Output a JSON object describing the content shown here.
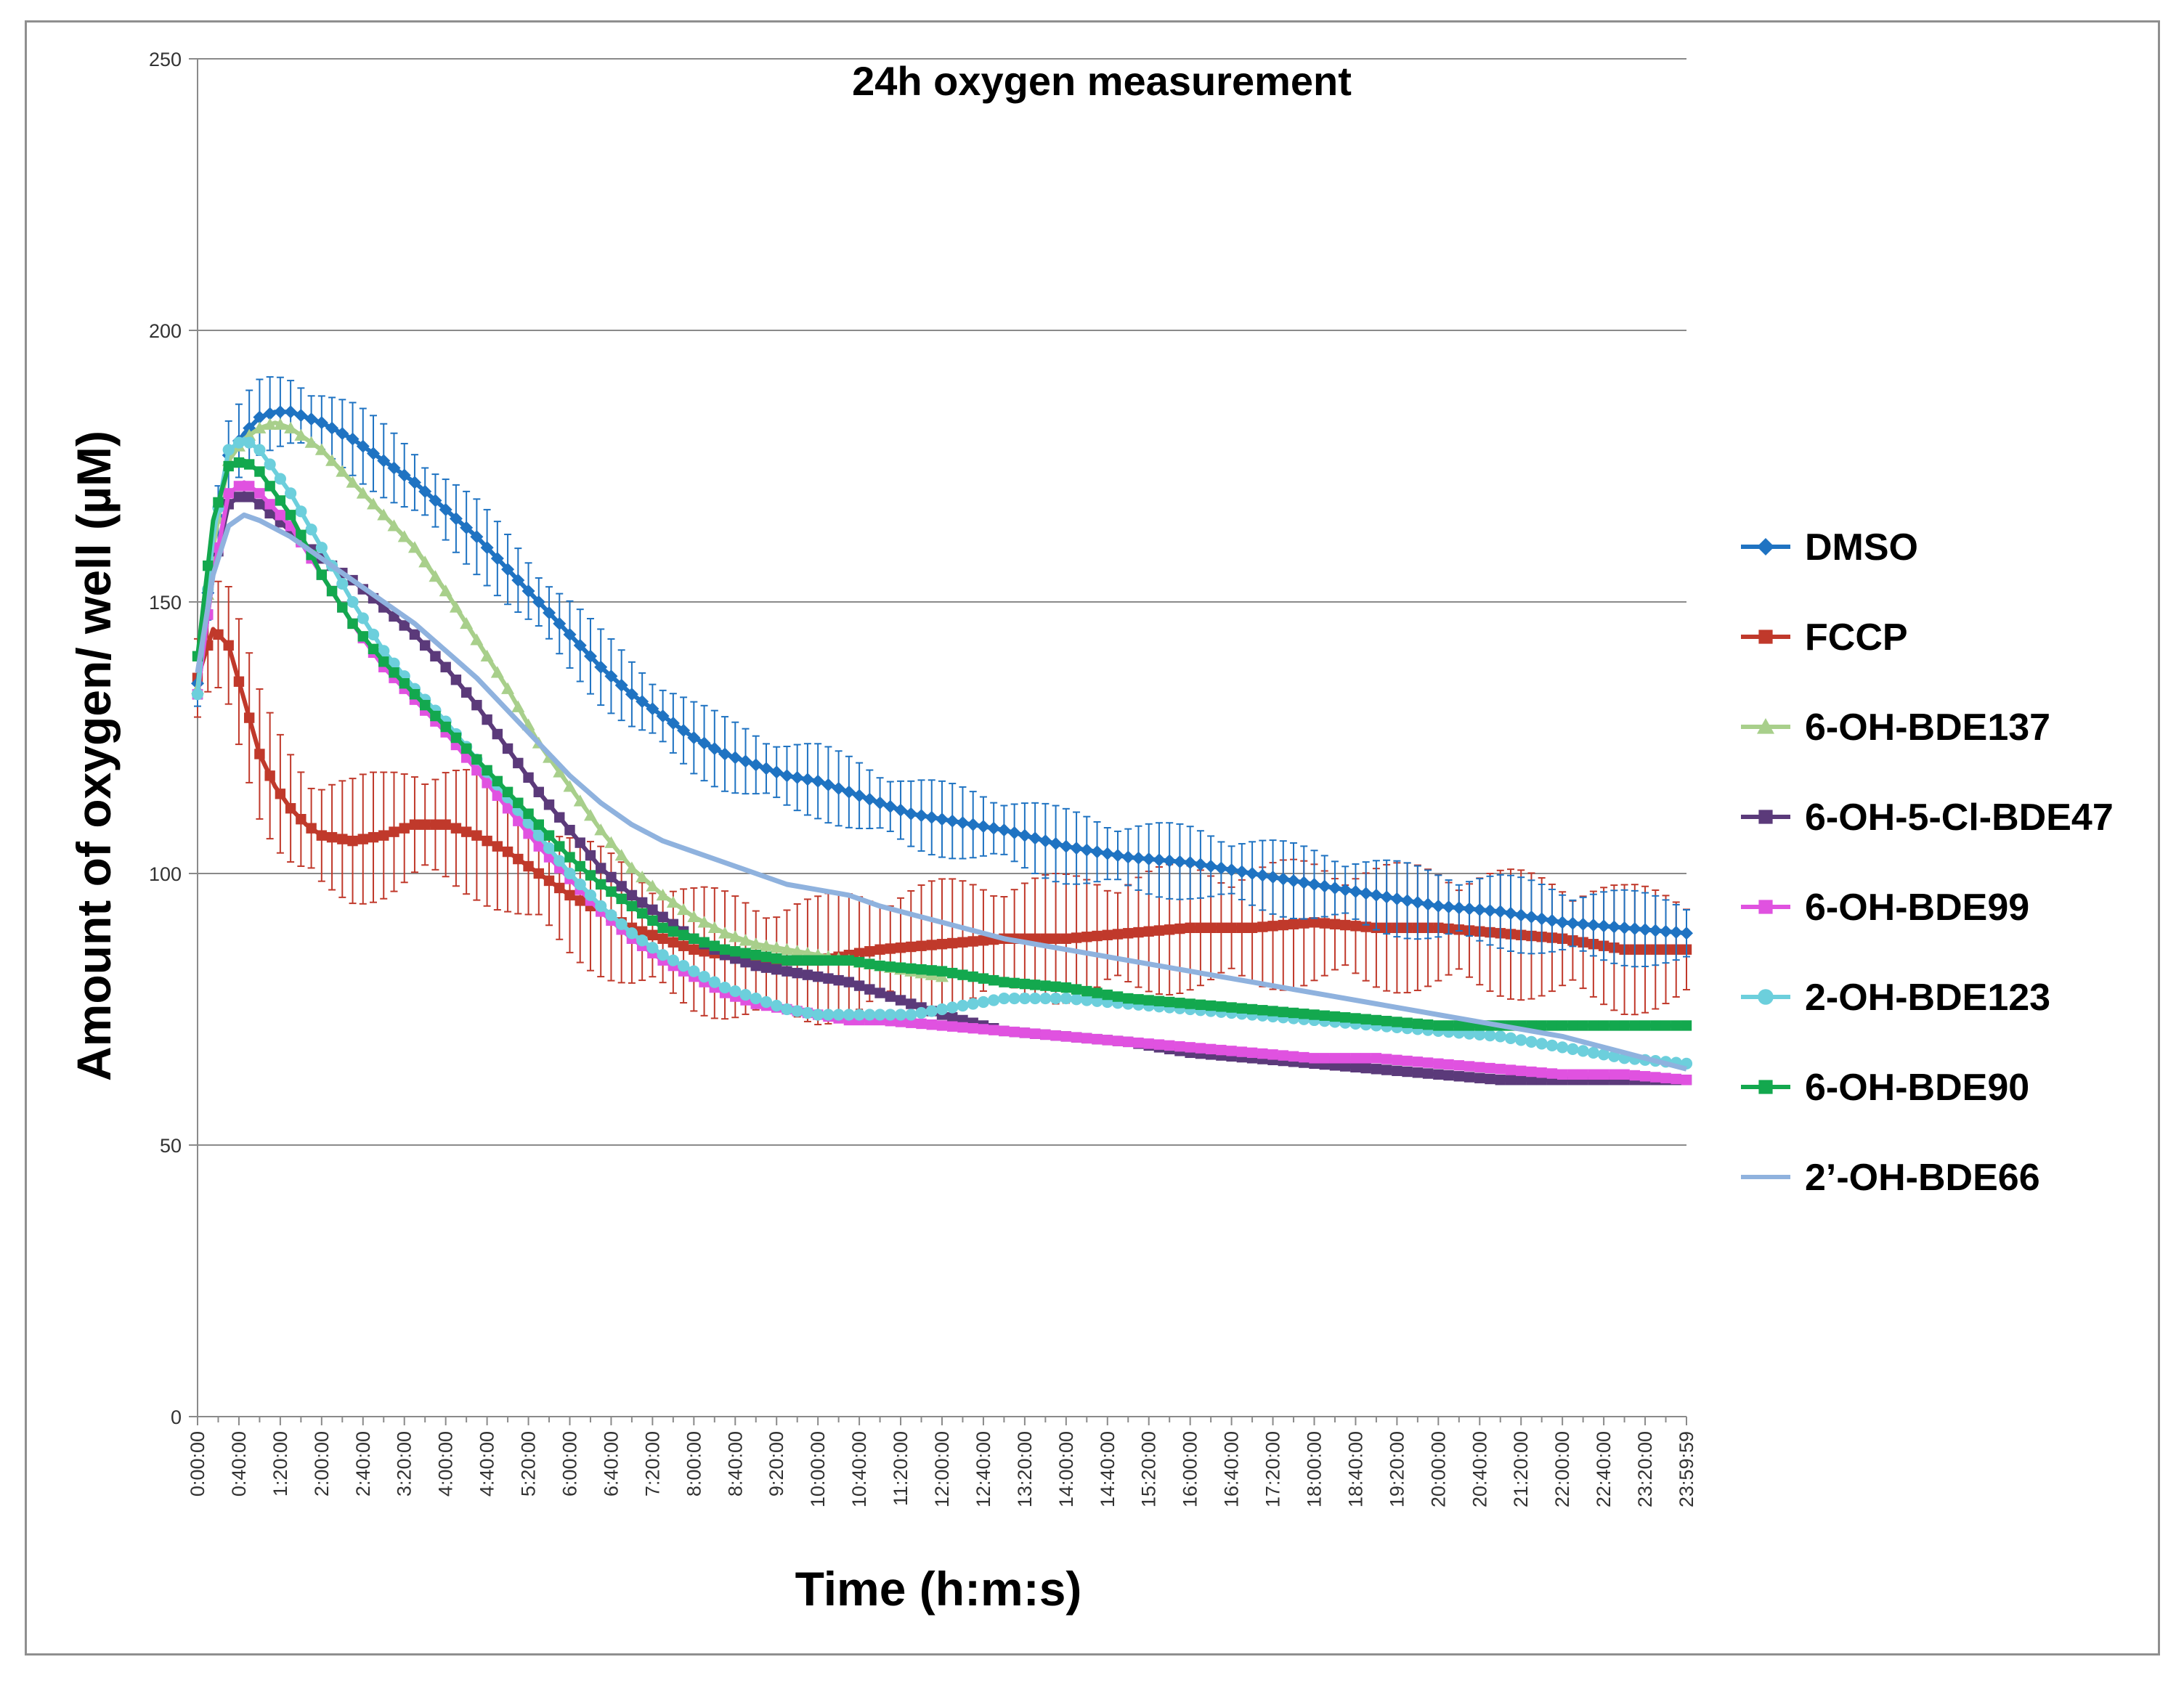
{
  "chart_data": {
    "type": "line",
    "title": "24h oxygen measurement",
    "xlabel": "Time (h:m:s)",
    "ylabel": "Amount of oxygen/ well (µM)",
    "ylim": [
      0,
      250
    ],
    "yticks": [
      0,
      50,
      100,
      150,
      200,
      250
    ],
    "xlim_hours": [
      0,
      24
    ],
    "x_tick_labels": [
      "0:00:00",
      "0:40:00",
      "1:20:00",
      "2:00:00",
      "2:40:00",
      "3:20:00",
      "4:00:00",
      "4:40:00",
      "5:20:00",
      "6:00:00",
      "6:40:00",
      "7:20:00",
      "8:00:00",
      "8:40:00",
      "9:20:00",
      "10:00:00",
      "10:40:00",
      "11:20:00",
      "12:00:00",
      "12:40:00",
      "13:20:00",
      "14:00:00",
      "14:40:00",
      "15:20:00",
      "16:00:00",
      "16:40:00",
      "17:20:00",
      "18:00:00",
      "18:40:00",
      "19:20:00",
      "20:00:00",
      "20:40:00",
      "21:20:00",
      "22:00:00",
      "22:40:00",
      "23:20:00",
      "23:59:59"
    ],
    "grid": true,
    "legend_position": "right",
    "series": [
      {
        "name": "DMSO",
        "color": "#1f73c2",
        "marker": "diamond",
        "error_bars": true,
        "error": 7,
        "points": [
          [
            0,
            135
          ],
          [
            0.25,
            160
          ],
          [
            0.5,
            177
          ],
          [
            0.75,
            181
          ],
          [
            1,
            184
          ],
          [
            1.25,
            185
          ],
          [
            1.5,
            185
          ],
          [
            1.75,
            184
          ],
          [
            2,
            183
          ],
          [
            2.5,
            180
          ],
          [
            3,
            176
          ],
          [
            3.5,
            172
          ],
          [
            4,
            167
          ],
          [
            4.5,
            162
          ],
          [
            5,
            156
          ],
          [
            5.5,
            150
          ],
          [
            6,
            144
          ],
          [
            6.5,
            138
          ],
          [
            7,
            133
          ],
          [
            7.5,
            129
          ],
          [
            8,
            125
          ],
          [
            8.5,
            122
          ],
          [
            9,
            120
          ],
          [
            9.5,
            118
          ],
          [
            10,
            117
          ],
          [
            10.5,
            115
          ],
          [
            11,
            113
          ],
          [
            11.5,
            111
          ],
          [
            12,
            110
          ],
          [
            12.5,
            109
          ],
          [
            13,
            108
          ],
          [
            14,
            105
          ],
          [
            15,
            103
          ],
          [
            16,
            102
          ],
          [
            17,
            100
          ],
          [
            18,
            98
          ],
          [
            19,
            96
          ],
          [
            20,
            94
          ],
          [
            21,
            93
          ],
          [
            22,
            91
          ],
          [
            23,
            90
          ],
          [
            24,
            89
          ]
        ]
      },
      {
        "name": "FCCP",
        "color": "#c0392b",
        "marker": "square",
        "error_bars": true,
        "error": 12,
        "points": [
          [
            0,
            136
          ],
          [
            0.25,
            145
          ],
          [
            0.5,
            142
          ],
          [
            0.75,
            132
          ],
          [
            1,
            122
          ],
          [
            1.25,
            116
          ],
          [
            1.5,
            112
          ],
          [
            1.75,
            109
          ],
          [
            2,
            107
          ],
          [
            2.5,
            106
          ],
          [
            3,
            107
          ],
          [
            3.5,
            109
          ],
          [
            4,
            109
          ],
          [
            4.5,
            107
          ],
          [
            5,
            104
          ],
          [
            5.5,
            100
          ],
          [
            6,
            96
          ],
          [
            6.5,
            93
          ],
          [
            7,
            90
          ],
          [
            7.5,
            88
          ],
          [
            8,
            86
          ],
          [
            8.5,
            85
          ],
          [
            9,
            84
          ],
          [
            9.5,
            84
          ],
          [
            10,
            84
          ],
          [
            10.5,
            85
          ],
          [
            11,
            86
          ],
          [
            12,
            87
          ],
          [
            13,
            88
          ],
          [
            14,
            88
          ],
          [
            15,
            89
          ],
          [
            16,
            90
          ],
          [
            17,
            90
          ],
          [
            18,
            91
          ],
          [
            19,
            90
          ],
          [
            20,
            90
          ],
          [
            21,
            89
          ],
          [
            22,
            88
          ],
          [
            23,
            86
          ],
          [
            24,
            86
          ]
        ]
      },
      {
        "name": "6-OH-BDE137",
        "color": "#a8cf8b",
        "marker": "triangle",
        "error_bars": false,
        "points": [
          [
            0,
            134
          ],
          [
            0.25,
            160
          ],
          [
            0.5,
            176
          ],
          [
            0.75,
            180
          ],
          [
            1,
            182
          ],
          [
            1.25,
            183
          ],
          [
            1.5,
            182
          ],
          [
            2,
            178
          ],
          [
            2.5,
            172
          ],
          [
            3,
            166
          ],
          [
            3.5,
            160
          ],
          [
            4,
            152
          ],
          [
            4.5,
            143
          ],
          [
            5,
            134
          ],
          [
            5.5,
            124
          ],
          [
            6,
            116
          ],
          [
            6.5,
            108
          ],
          [
            7,
            101
          ],
          [
            7.5,
            96
          ],
          [
            8,
            92
          ],
          [
            8.5,
            89
          ],
          [
            9,
            87
          ],
          [
            9.5,
            86
          ],
          [
            10,
            85
          ],
          [
            10.5,
            84
          ],
          [
            11,
            83
          ],
          [
            11.5,
            82
          ],
          [
            12,
            81
          ]
        ]
      },
      {
        "name": "6-OH-5-Cl-BDE47",
        "color": "#5b3a7a",
        "marker": "square",
        "error_bars": false,
        "points": [
          [
            0,
            133
          ],
          [
            0.25,
            155
          ],
          [
            0.5,
            168
          ],
          [
            0.75,
            170
          ],
          [
            1,
            168
          ],
          [
            1.5,
            163
          ],
          [
            2,
            158
          ],
          [
            2.5,
            154
          ],
          [
            3,
            149
          ],
          [
            3.5,
            144
          ],
          [
            4,
            138
          ],
          [
            4.5,
            131
          ],
          [
            5,
            123
          ],
          [
            5.5,
            115
          ],
          [
            6,
            108
          ],
          [
            6.5,
            101
          ],
          [
            7,
            96
          ],
          [
            7.5,
            92
          ],
          [
            8,
            88
          ],
          [
            8.5,
            85
          ],
          [
            9,
            83
          ],
          [
            9.5,
            82
          ],
          [
            10,
            81
          ],
          [
            10.5,
            80
          ],
          [
            11,
            78
          ],
          [
            11.5,
            76
          ],
          [
            12,
            74
          ],
          [
            13,
            71
          ],
          [
            14,
            70
          ],
          [
            15,
            69
          ],
          [
            16,
            67
          ],
          [
            17,
            66
          ],
          [
            18,
            65
          ],
          [
            19,
            64
          ],
          [
            20,
            63
          ],
          [
            21,
            62
          ],
          [
            22,
            62
          ],
          [
            23,
            62
          ],
          [
            24,
            62
          ]
        ]
      },
      {
        "name": "6-OH-BDE99",
        "color": "#e052e0",
        "marker": "square",
        "error_bars": false,
        "points": [
          [
            0,
            133
          ],
          [
            0.25,
            155
          ],
          [
            0.5,
            170
          ],
          [
            0.75,
            172
          ],
          [
            1,
            170
          ],
          [
            1.5,
            164
          ],
          [
            2,
            155
          ],
          [
            2.5,
            146
          ],
          [
            3,
            138
          ],
          [
            3.5,
            132
          ],
          [
            4,
            126
          ],
          [
            4.5,
            119
          ],
          [
            5,
            112
          ],
          [
            5.5,
            105
          ],
          [
            6,
            99
          ],
          [
            6.5,
            93
          ],
          [
            7,
            88
          ],
          [
            7.5,
            84
          ],
          [
            8,
            81
          ],
          [
            8.5,
            78
          ],
          [
            9,
            76
          ],
          [
            9.5,
            75
          ],
          [
            10,
            74
          ],
          [
            10.5,
            73
          ],
          [
            11,
            73
          ],
          [
            12,
            72
          ],
          [
            13,
            71
          ],
          [
            14,
            70
          ],
          [
            15,
            69
          ],
          [
            16,
            68
          ],
          [
            17,
            67
          ],
          [
            18,
            66
          ],
          [
            19,
            66
          ],
          [
            20,
            65
          ],
          [
            21,
            64
          ],
          [
            22,
            63
          ],
          [
            23,
            63
          ],
          [
            24,
            62
          ]
        ]
      },
      {
        "name": "2-OH-BDE123",
        "color": "#6ccfdc",
        "marker": "circle",
        "error_bars": false,
        "points": [
          [
            0,
            133
          ],
          [
            0.25,
            162
          ],
          [
            0.5,
            178
          ],
          [
            0.75,
            180
          ],
          [
            1,
            178
          ],
          [
            1.5,
            170
          ],
          [
            2,
            160
          ],
          [
            2.5,
            150
          ],
          [
            3,
            141
          ],
          [
            3.5,
            134
          ],
          [
            4,
            128
          ],
          [
            4.5,
            121
          ],
          [
            5,
            114
          ],
          [
            5.5,
            107
          ],
          [
            6,
            100
          ],
          [
            6.5,
            94
          ],
          [
            7,
            89
          ],
          [
            7.5,
            85
          ],
          [
            8,
            82
          ],
          [
            8.5,
            79
          ],
          [
            9,
            77
          ],
          [
            9.5,
            75
          ],
          [
            10,
            74
          ],
          [
            10.5,
            74
          ],
          [
            11,
            74
          ],
          [
            11.5,
            74
          ],
          [
            12,
            75
          ],
          [
            12.5,
            76
          ],
          [
            13,
            77
          ],
          [
            14,
            77
          ],
          [
            15,
            76
          ],
          [
            16,
            75
          ],
          [
            17,
            74
          ],
          [
            18,
            73
          ],
          [
            19,
            72
          ],
          [
            20,
            71
          ],
          [
            21,
            70
          ],
          [
            22,
            68
          ],
          [
            23,
            66
          ],
          [
            24,
            65
          ]
        ]
      },
      {
        "name": "6-OH-BDE90",
        "color": "#13a84e",
        "marker": "square",
        "error_bars": false,
        "points": [
          [
            0,
            140
          ],
          [
            0.25,
            165
          ],
          [
            0.5,
            175
          ],
          [
            0.75,
            176
          ],
          [
            1,
            174
          ],
          [
            1.25,
            170
          ],
          [
            1.5,
            166
          ],
          [
            2,
            155
          ],
          [
            2.5,
            146
          ],
          [
            3,
            139
          ],
          [
            3.5,
            133
          ],
          [
            4,
            127
          ],
          [
            4.5,
            121
          ],
          [
            5,
            115
          ],
          [
            5.5,
            109
          ],
          [
            6,
            103
          ],
          [
            6.5,
            98
          ],
          [
            7,
            94
          ],
          [
            7.5,
            90
          ],
          [
            8,
            88
          ],
          [
            8.5,
            86
          ],
          [
            9,
            85
          ],
          [
            9.5,
            84
          ],
          [
            10,
            84
          ],
          [
            10.5,
            84
          ],
          [
            11,
            83
          ],
          [
            12,
            82
          ],
          [
            13,
            80
          ],
          [
            14,
            79
          ],
          [
            15,
            77
          ],
          [
            16,
            76
          ],
          [
            17,
            75
          ],
          [
            18,
            74
          ],
          [
            19,
            73
          ],
          [
            20,
            72
          ],
          [
            21,
            72
          ],
          [
            22,
            72
          ],
          [
            23,
            72
          ],
          [
            24,
            72
          ]
        ]
      },
      {
        "name": "2’-OH-BDE66",
        "color": "#8fb2de",
        "marker": "none",
        "error_bars": false,
        "points": [
          [
            0,
            137
          ],
          [
            0.25,
            155
          ],
          [
            0.5,
            164
          ],
          [
            0.75,
            166
          ],
          [
            1,
            165
          ],
          [
            1.5,
            162
          ],
          [
            2,
            158
          ],
          [
            2.5,
            154
          ],
          [
            3,
            150
          ],
          [
            3.5,
            146
          ],
          [
            4,
            141
          ],
          [
            4.5,
            136
          ],
          [
            5,
            130
          ],
          [
            5.5,
            124
          ],
          [
            6,
            118
          ],
          [
            6.5,
            113
          ],
          [
            7,
            109
          ],
          [
            7.5,
            106
          ],
          [
            8,
            104
          ],
          [
            8.5,
            102
          ],
          [
            9,
            100
          ],
          [
            9.5,
            98
          ],
          [
            10,
            97
          ],
          [
            10.5,
            96
          ],
          [
            11,
            94
          ],
          [
            12,
            91
          ],
          [
            13,
            88
          ],
          [
            14,
            86
          ],
          [
            15,
            84
          ],
          [
            16,
            82
          ],
          [
            17,
            80
          ],
          [
            18,
            78
          ],
          [
            19,
            76
          ],
          [
            20,
            74
          ],
          [
            21,
            72
          ],
          [
            22,
            70
          ],
          [
            23,
            67
          ],
          [
            24,
            64
          ]
        ]
      }
    ]
  }
}
